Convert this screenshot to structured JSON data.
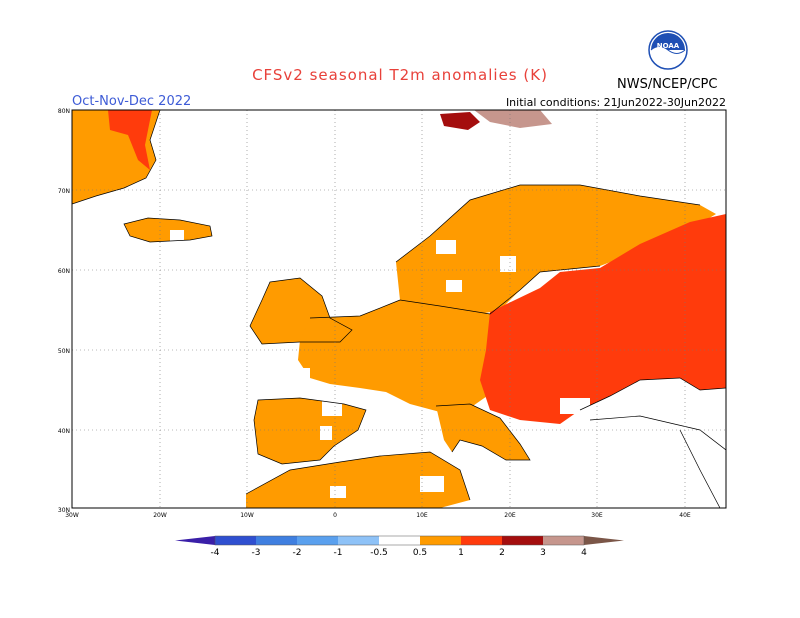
{
  "header": {
    "title": "CFSv2 seasonal T2m anomalies (K)",
    "period": "Oct-Nov-Dec 2022",
    "initial_conditions": "Initial conditions: 21Jun2022-30Jun2022",
    "agency": "NWS/NCEP/CPC",
    "logo_text": "NOAA",
    "logo_icon": "noaa-logo-icon"
  },
  "axes": {
    "lat_labels": [
      "80N",
      "70N",
      "60N",
      "50N",
      "40N",
      "30N"
    ],
    "lon_labels": [
      "30W",
      "20W",
      "10W",
      "0",
      "10E",
      "20E",
      "30E",
      "40E"
    ]
  },
  "colorbar": {
    "labels": [
      "-4",
      "-3",
      "-2",
      "-1",
      "-0.5",
      "0.5",
      "1",
      "2",
      "3",
      "4"
    ],
    "colors": [
      "#3a1fa8",
      "#2f4fd0",
      "#3f7fe0",
      "#5aa0ee",
      "#8ec2f7",
      "#ffffff",
      "#ff9b00",
      "#ff3b0c",
      "#a40e0e",
      "#c6968d",
      "#7b5648"
    ]
  },
  "legend": {
    "warm_anomaly_color": "#ff9b00",
    "strong_anomaly_color": "#ff3b0c",
    "very_strong_anomaly_color": "#a40e0e"
  }
}
